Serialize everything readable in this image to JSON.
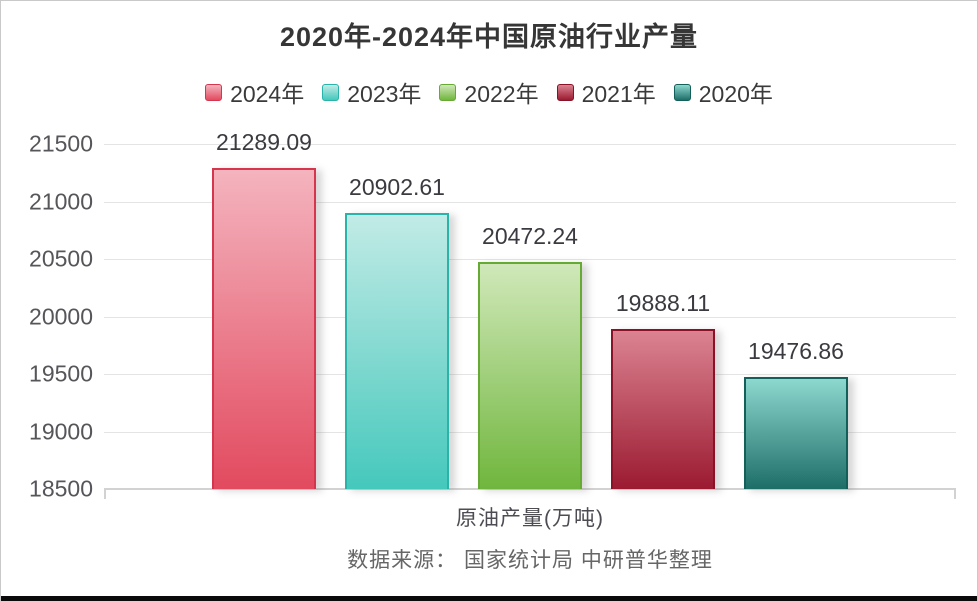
{
  "title": "2020年-2024年中国原油行业产量",
  "source_note": "数据来源： 国家统计局 中研普华整理",
  "chart_data": {
    "type": "bar",
    "title": "2020年-2024年中国原油行业产量",
    "categories": [
      "原油产量(万吨)"
    ],
    "xlabel": "原油产量(万吨)",
    "ylabel": "",
    "unit": "万吨",
    "ylim": [
      18500,
      21500
    ],
    "ytick_interval": 500,
    "yticks": [
      21500,
      21000,
      20500,
      20000,
      19500,
      19000,
      18500
    ],
    "grid": true,
    "legend_position": "top",
    "series": [
      {
        "name": "2024年",
        "value": 21289.09,
        "label": "21289.09",
        "color_top": "#f4b4be",
        "color_bottom": "#e24a5f",
        "border_color": "#d6354e"
      },
      {
        "name": "2023年",
        "value": 20902.61,
        "label": "20902.61",
        "color_top": "#c2ebe6",
        "color_bottom": "#45c8bc",
        "border_color": "#2ab3a9"
      },
      {
        "name": "2022年",
        "value": 20472.24,
        "label": "20472.24",
        "color_top": "#d0e8b9",
        "color_bottom": "#70b63d",
        "border_color": "#66a934"
      },
      {
        "name": "2021年",
        "value": 19888.11,
        "label": "19888.11",
        "color_top": "#db8391",
        "color_bottom": "#9b1a31",
        "border_color": "#8a1126"
      },
      {
        "name": "2020年",
        "value": 19476.86,
        "label": "19476.86",
        "color_top": "#8dd8cf",
        "color_bottom": "#1e6e68",
        "border_color": "#135f59"
      }
    ]
  }
}
